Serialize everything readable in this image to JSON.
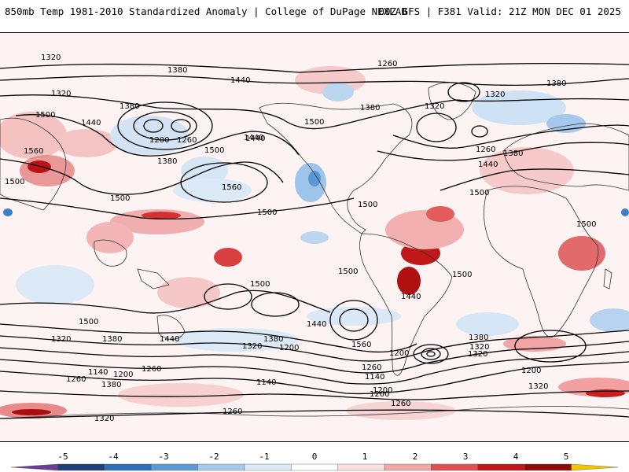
{
  "header": {
    "title": "850mb Temp 1981-2010 Standardized Anomaly | College of DuPage NEXLAB",
    "run_info": "00Z GFS | F381 Valid: 21Z MON DEC 01 2025"
  },
  "contour_labels": [
    "1320",
    "1380",
    "1440",
    "1260",
    "1380",
    "1320",
    "1500",
    "1320",
    "1380",
    "1440",
    "1260",
    "1200",
    "1500",
    "1440",
    "1560",
    "1500",
    "1380",
    "1500",
    "1500",
    "1320",
    "1440",
    "1380",
    "1560",
    "1500",
    "1500",
    "1260",
    "1380",
    "1500",
    "1500",
    "1440",
    "1500",
    "1500",
    "1440",
    "1500",
    "1440",
    "1380",
    "1320",
    "1200",
    "1560",
    "1320",
    "1200",
    "1260",
    "1380",
    "1440",
    "1320",
    "1200",
    "1500",
    "1380",
    "1320",
    "1200",
    "1140",
    "1200",
    "1260",
    "1380",
    "1140",
    "1260",
    "1140",
    "1200",
    "1260",
    "1320",
    "1260",
    "1320"
  ],
  "colorbar": {
    "ticks": [
      "-5",
      "-4",
      "-3",
      "-2",
      "-1",
      "0",
      "1",
      "2",
      "3",
      "4",
      "5"
    ],
    "colors": [
      "#6a3d9a",
      "#1f3f7a",
      "#2f6fb5",
      "#5b9bd5",
      "#a9cbeb",
      "#dce9f6",
      "#ffffff",
      "#fbe0e0",
      "#f2a7a7",
      "#e05050",
      "#c01818",
      "#8c0a0a",
      "#f5c400"
    ]
  },
  "map_colors": {
    "land_line": "#333333",
    "contour_line": "#000000",
    "warm_light": "#f6c9c9",
    "warm_mid": "#ec8f8f",
    "warm_strong": "#d22a2a",
    "warm_extreme": "#8c0a0a",
    "cold_light": "#cfe1f4",
    "cold_mid": "#8fbbe6",
    "cold_strong": "#3b7fc8",
    "background": "#fdf6f6"
  }
}
